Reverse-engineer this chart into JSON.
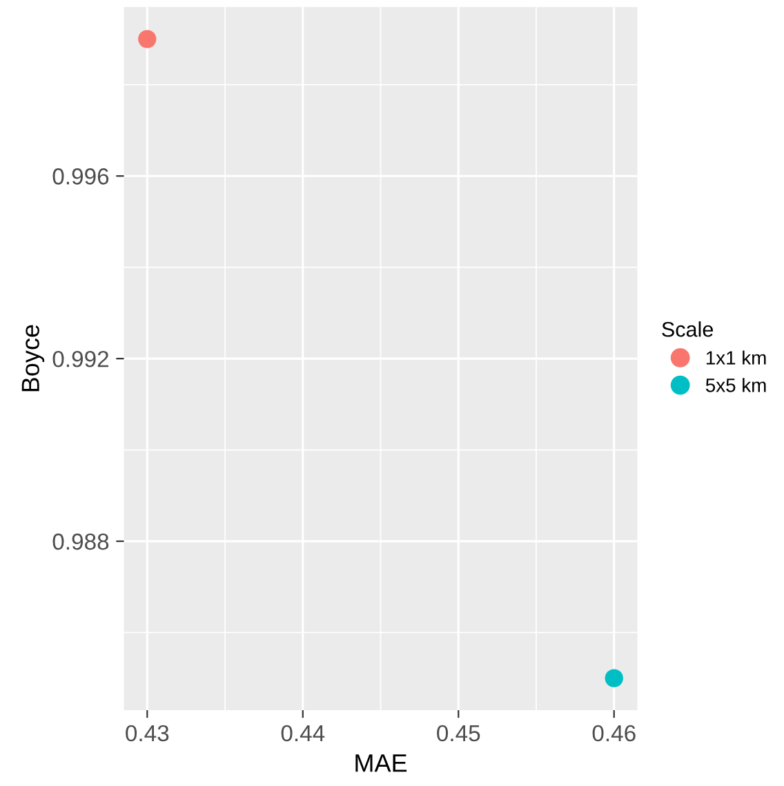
{
  "chart_data": {
    "type": "scatter",
    "xlabel": "MAE",
    "ylabel": "Boyce",
    "legend_title": "Scale",
    "series": [
      {
        "name": "1x1 km",
        "color": "#f8766d",
        "x": [
          0.43
        ],
        "values": [
          0.999
        ]
      },
      {
        "name": "5x5 km",
        "color": "#00bfc4",
        "x": [
          0.46
        ],
        "values": [
          0.985
        ]
      }
    ],
    "xlim": [
      0.4285,
      0.4615
    ],
    "xticks": [
      0.43,
      0.44,
      0.45,
      0.46
    ],
    "ylim": [
      0.9843,
      0.9997
    ],
    "yticks": [
      0.988,
      0.992,
      0.996
    ],
    "grid": true,
    "legend": "right",
    "marker": "circle"
  }
}
